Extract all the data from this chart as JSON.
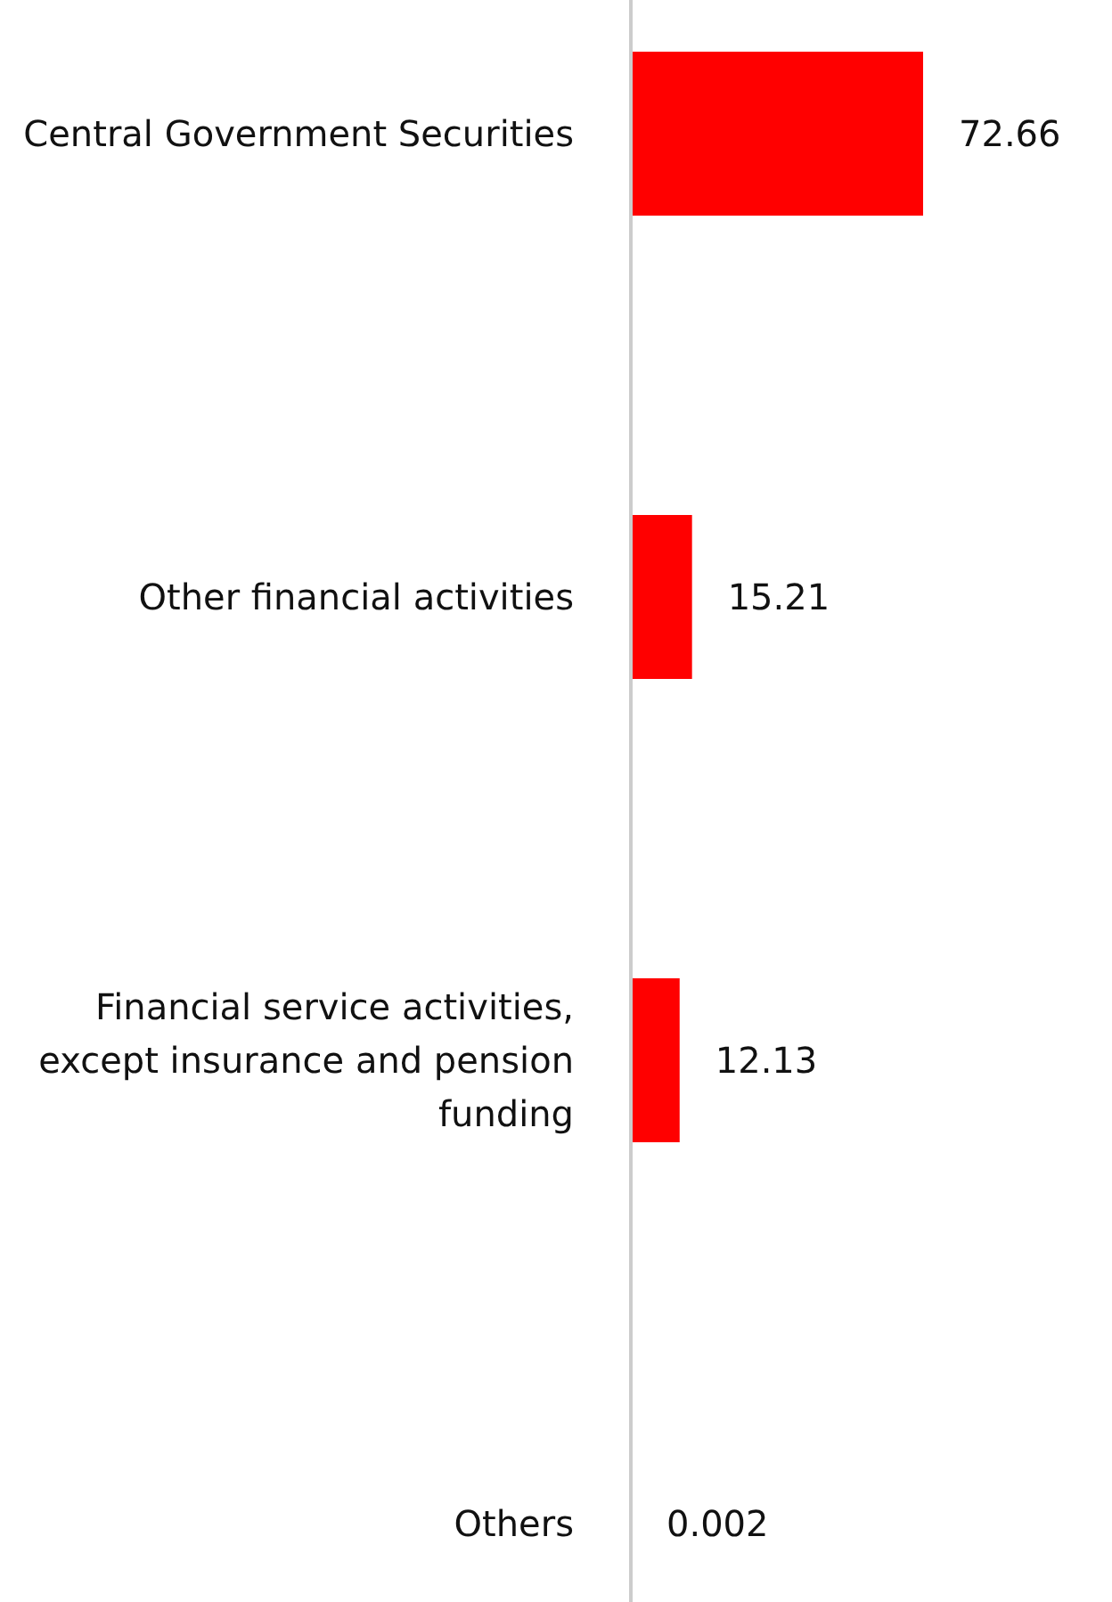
{
  "chart_data": {
    "type": "bar",
    "orientation": "horizontal",
    "categories": [
      "Central Government Securities",
      "Other financial activities",
      "Financial service activities, except insurance and pension funding",
      "Others"
    ],
    "values": [
      72.66,
      15.21,
      12.13,
      0.002
    ],
    "color": "#ff0000",
    "data_labels": true
  }
}
